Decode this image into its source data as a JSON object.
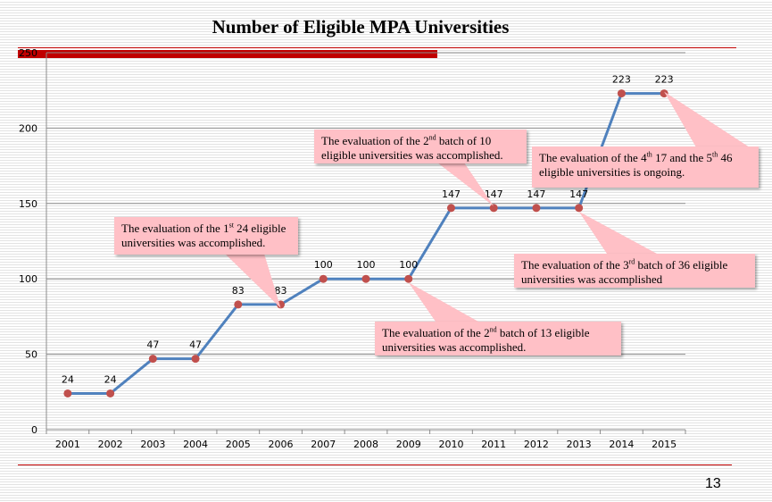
{
  "title": "Number of Eligible MPA  Universities",
  "page_number": "13",
  "chart_data": {
    "type": "line",
    "title": "Number of Eligible MPA  Universities",
    "xlabel": "",
    "ylabel": "",
    "categories": [
      "2001",
      "2002",
      "2003",
      "2004",
      "2005",
      "2006",
      "2007",
      "2008",
      "2009",
      "2010",
      "2011",
      "2012",
      "2013",
      "2014",
      "2015"
    ],
    "series": [
      {
        "values": [
          24,
          24,
          47,
          47,
          83,
          83,
          100,
          100,
          100,
          147,
          147,
          147,
          147,
          223,
          223
        ]
      }
    ],
    "y_ticks": [
      0,
      50,
      100,
      150,
      200,
      250
    ],
    "ylim": [
      0,
      250
    ],
    "grid": "horizontal",
    "legend": "none",
    "line_color": "#4f81bd",
    "marker_color": "#c0504d"
  },
  "callouts": [
    {
      "pre": "The evaluation of the 1",
      "sup": "st",
      "post": " 24 eligible universities was accomplished.",
      "target_index": 5
    },
    {
      "pre": "The evaluation of the 2",
      "sup": "nd",
      "post": " batch of 13 eligible universities was accomplished.",
      "target_index": 8
    },
    {
      "pre": "The evaluation of the 2",
      "sup": "nd",
      "post": " batch of 10 eligible  universities was accomplished.",
      "target_index": 10
    },
    {
      "pre": "The evaluation of the 3",
      "sup": "rd",
      "post": " batch of 36 eligible universities was accomplished",
      "target_index": 12
    },
    {
      "pre": "The evaluation of the 4",
      "sup": "th",
      "post": " 17 and the 5",
      "sup2": "th",
      "post2": " 46 eligible  universities is ongoing.",
      "target_index": 14
    }
  ]
}
